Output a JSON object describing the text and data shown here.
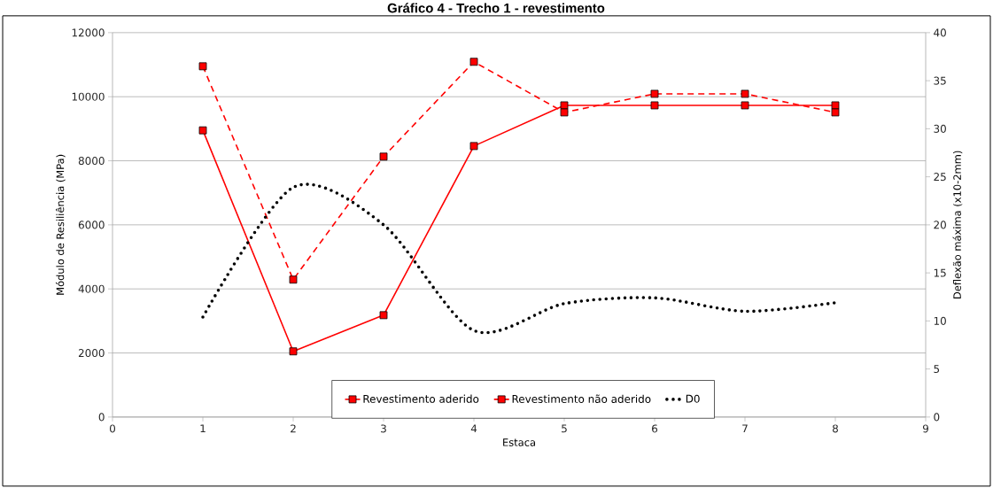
{
  "chart_data": {
    "type": "line",
    "title": "Gráfico 4 - Trecho 1 - revestimento",
    "xlabel": "Estaca",
    "ylabel": "Módulo de Resiliência (MPa)",
    "y2label": "Deflexão máxima (x10-2mm)",
    "x": [
      1,
      2,
      3,
      4,
      5,
      6,
      7,
      8
    ],
    "series": [
      {
        "name": "Revestimento aderido",
        "color": "#ff0000",
        "marker": "square",
        "line_style": "solid",
        "values": [
          8950,
          2050,
          3180,
          8460,
          9730,
          9730,
          9730,
          9730
        ]
      },
      {
        "name": "Revestimento não aderido",
        "color": "#ff0000",
        "marker": "square",
        "line_style": "dashed",
        "values": [
          10950,
          4290,
          8130,
          11090,
          9510,
          10090,
          10090,
          9510
        ]
      },
      {
        "name": "D0",
        "color": "#000000",
        "marker": "none",
        "line_style": "dotted",
        "axis": "y2",
        "values": [
          10.4,
          23.9,
          20.0,
          9.0,
          11.8,
          12.4,
          11.0,
          11.9
        ]
      }
    ],
    "xlim": [
      0,
      9
    ],
    "xticks": [
      0,
      1,
      2,
      3,
      4,
      5,
      6,
      7,
      8,
      9
    ],
    "ylim": [
      0,
      12000
    ],
    "yticks": [
      0,
      2000,
      4000,
      6000,
      8000,
      10000,
      12000
    ],
    "y2lim": [
      0,
      40
    ],
    "y2ticks": [
      0,
      5,
      10,
      15,
      20,
      25,
      30,
      35,
      40
    ],
    "grid": "y",
    "legend": "bottom"
  }
}
